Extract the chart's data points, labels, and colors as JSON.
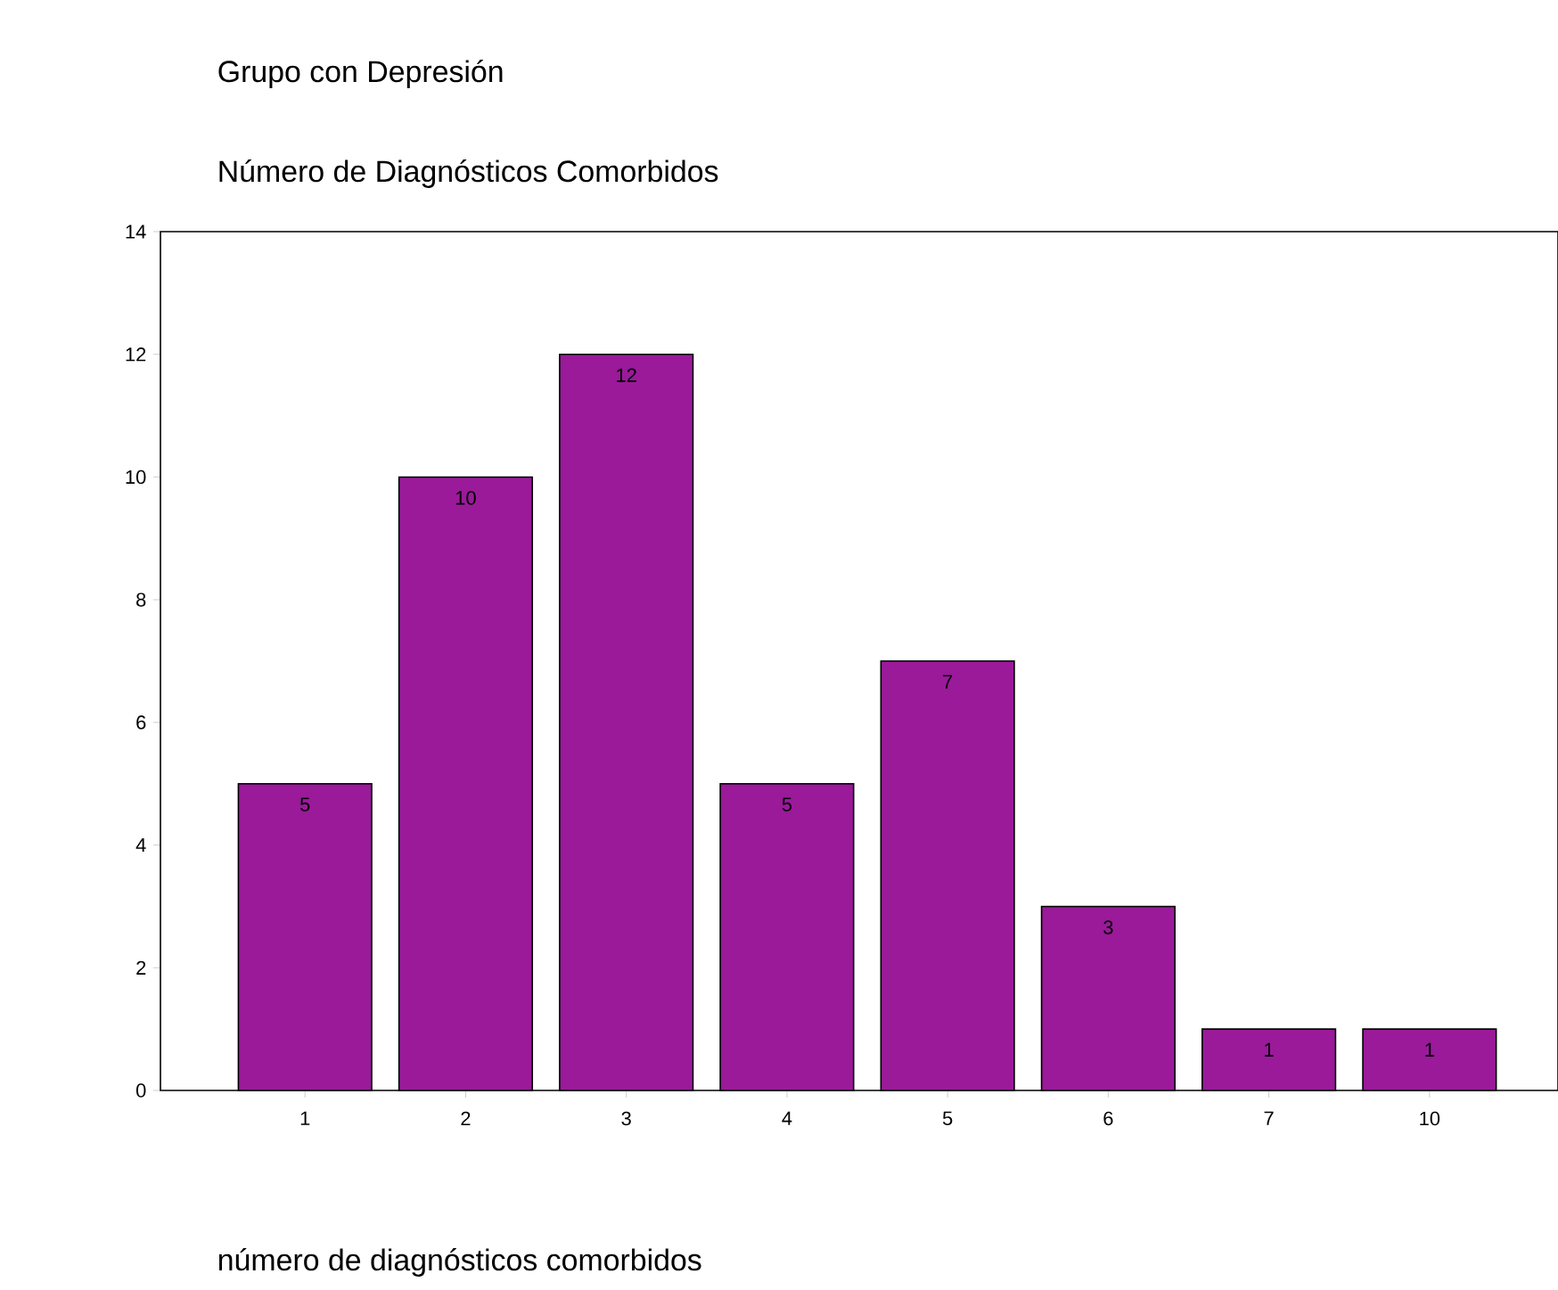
{
  "chart_data": {
    "type": "bar",
    "title": "Grupo con Depresión",
    "subtitle": "Número de Diagnósticos Comorbidos",
    "xlabel": "número de diagnósticos comorbidos",
    "categories": [
      "1",
      "2",
      "3",
      "4",
      "5",
      "6",
      "7",
      "10"
    ],
    "values": [
      5,
      10,
      12,
      5,
      7,
      3,
      1,
      1
    ],
    "value_labels": [
      "5",
      "10",
      "12",
      "5",
      "7",
      "3",
      "1",
      "1"
    ],
    "color": "#9a1a9a",
    "ylim": [
      0,
      14
    ],
    "yticks": [
      0,
      2,
      4,
      6,
      8,
      10,
      12,
      14
    ],
    "grid": false
  }
}
